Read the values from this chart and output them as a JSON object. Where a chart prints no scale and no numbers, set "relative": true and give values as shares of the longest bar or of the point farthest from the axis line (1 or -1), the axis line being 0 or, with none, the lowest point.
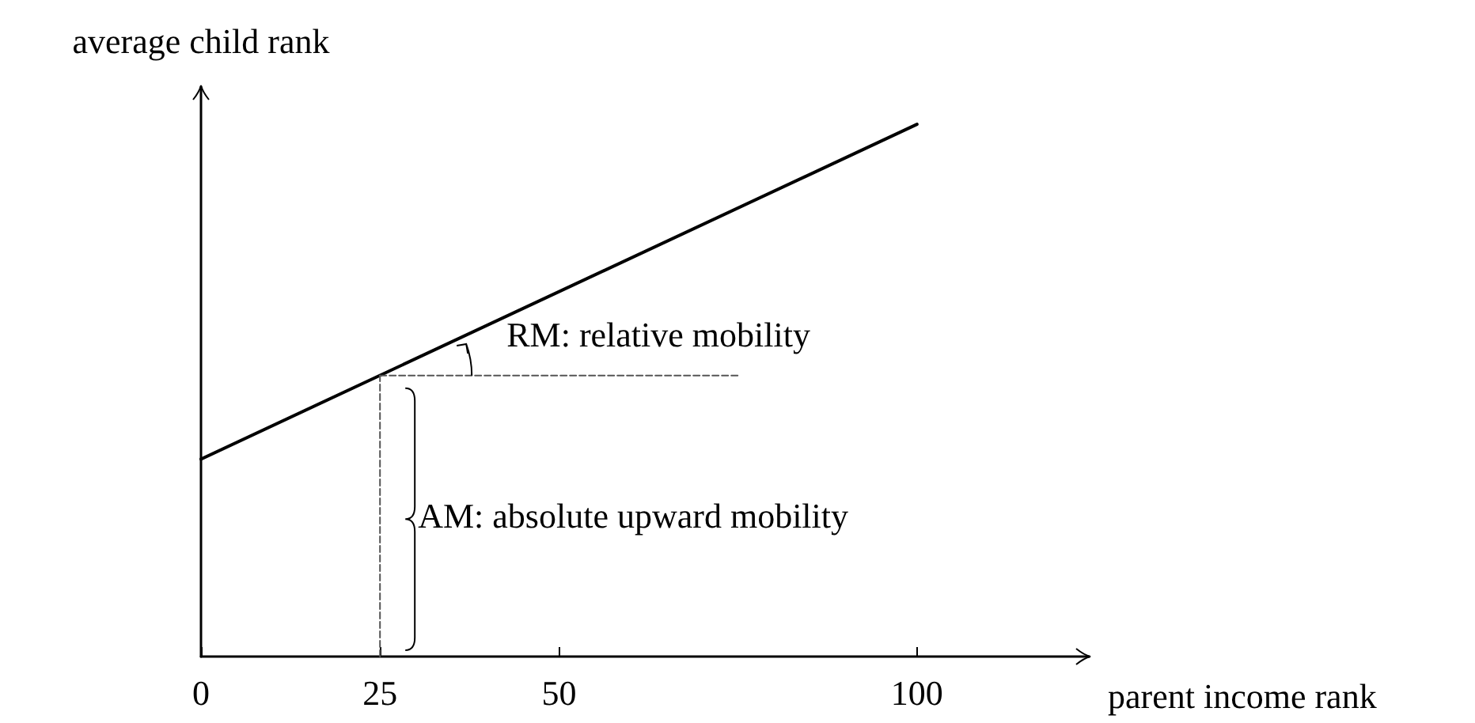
{
  "chart_data": {
    "type": "line",
    "relative": true,
    "xlabel": "parent income rank",
    "ylabel": "average child rank",
    "xlim": [
      0,
      124
    ],
    "xticks": [
      0,
      25,
      50,
      100
    ],
    "grid": false,
    "marker": "none",
    "series": [
      {
        "color": "#000000",
        "x": [
          0,
          100
        ],
        "values": [
          0.371,
          1
        ],
        "line_style": "solid"
      },
      {
        "color": "#555555",
        "x": [
          25,
          75
        ],
        "values": [
          0.528,
          0.528
        ],
        "line_style": "dashed"
      },
      {
        "color": "#555555",
        "x": [
          25,
          25
        ],
        "values": [
          0,
          0.528
        ],
        "line_style": "dashed"
      }
    ],
    "annotations": [
      "RM: relative mobility",
      {
        "text": "AM: absolute upward mobility",
        "x": 25,
        "y": 0.264
      }
    ]
  }
}
